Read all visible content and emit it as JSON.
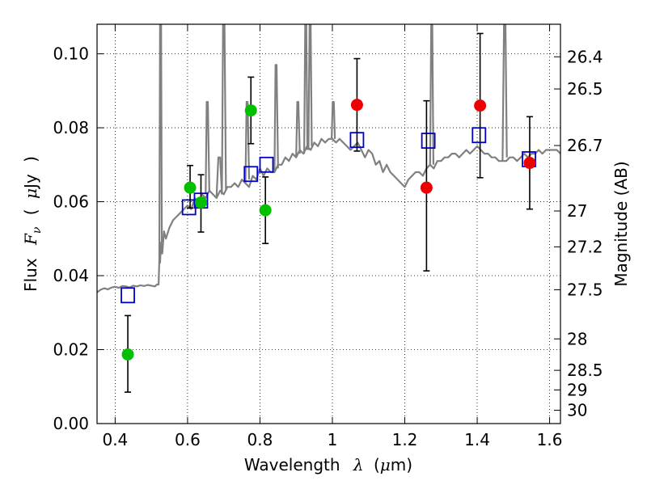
{
  "chart_data": {
    "type": "scatter",
    "xlabel": {
      "text": "Wavelength",
      "symbol": "λ",
      "open": "(",
      "unit_symbol": "μ",
      "unit": "m)"
    },
    "ylabel": {
      "text": "Flux",
      "symbol": "F",
      "subscript": "ν",
      "open": "(",
      "unit_symbol": "μ",
      "unit": "Jy",
      "close": ")"
    },
    "y2label": "Magnitude (AB)",
    "xlim": [
      0.35,
      1.63
    ],
    "ylim": [
      0.0,
      0.108
    ],
    "grid": true,
    "x_ticks": [
      {
        "value": 0.4,
        "label": "0.4"
      },
      {
        "value": 0.6,
        "label": "0.6"
      },
      {
        "value": 0.8,
        "label": "0.8"
      },
      {
        "value": 1.0,
        "label": "1"
      },
      {
        "value": 1.2,
        "label": "1.2"
      },
      {
        "value": 1.4,
        "label": "1.4"
      },
      {
        "value": 1.6,
        "label": "1.6"
      }
    ],
    "y_ticks": [
      {
        "value": 0.0,
        "label": "0.00"
      },
      {
        "value": 0.02,
        "label": "0.02"
      },
      {
        "value": 0.04,
        "label": "0.04"
      },
      {
        "value": 0.06,
        "label": "0.06"
      },
      {
        "value": 0.08,
        "label": "0.08"
      },
      {
        "value": 0.1,
        "label": "0.10"
      }
    ],
    "mag_ticks": [
      {
        "flux": 0.0992,
        "label": "26.4"
      },
      {
        "flux": 0.0905,
        "label": "26.5"
      },
      {
        "flux": 0.0752,
        "label": "26.7"
      },
      {
        "flux": 0.0575,
        "label": "27"
      },
      {
        "flux": 0.0478,
        "label": "27.2"
      },
      {
        "flux": 0.0362,
        "label": "27.5"
      },
      {
        "flux": 0.0229,
        "label": "28"
      },
      {
        "flux": 0.0144,
        "label": "28.5"
      },
      {
        "flux": 0.0091,
        "label": "29"
      },
      {
        "flux": 0.0036,
        "label": "30"
      }
    ],
    "series": [
      {
        "kind": "line",
        "color": "#808080",
        "x": [
          0.35,
          0.36,
          0.37,
          0.38,
          0.39,
          0.4,
          0.41,
          0.42,
          0.43,
          0.44,
          0.45,
          0.46,
          0.47,
          0.48,
          0.49,
          0.5,
          0.51,
          0.515,
          0.52,
          0.522,
          0.524,
          0.527,
          0.53,
          0.535,
          0.54,
          0.55,
          0.56,
          0.57,
          0.58,
          0.59,
          0.6,
          0.61,
          0.62,
          0.63,
          0.64,
          0.65,
          0.66,
          0.67,
          0.68,
          0.69,
          0.7,
          0.71,
          0.72,
          0.73,
          0.74,
          0.75,
          0.76,
          0.77,
          0.78,
          0.79,
          0.8,
          0.81,
          0.82,
          0.83,
          0.84,
          0.85,
          0.86,
          0.87,
          0.88,
          0.89,
          0.9,
          0.91,
          0.92,
          0.93,
          0.94,
          0.95,
          0.96,
          0.97,
          0.98,
          0.99,
          1.0,
          1.01,
          1.02,
          1.03,
          1.04,
          1.05,
          1.06,
          1.07,
          1.08,
          1.09,
          1.1,
          1.11,
          1.12,
          1.13,
          1.14,
          1.15,
          1.16,
          1.17,
          1.18,
          1.19,
          1.2,
          1.21,
          1.22,
          1.23,
          1.24,
          1.25,
          1.26,
          1.27,
          1.28,
          1.29,
          1.3,
          1.31,
          1.32,
          1.33,
          1.34,
          1.35,
          1.36,
          1.37,
          1.38,
          1.39,
          1.4,
          1.41,
          1.42,
          1.43,
          1.44,
          1.45,
          1.46,
          1.47,
          1.48,
          1.49,
          1.5,
          1.51,
          1.52,
          1.53,
          1.54,
          1.55,
          1.56,
          1.57,
          1.58,
          1.59,
          1.6,
          1.61,
          1.62,
          1.63
        ],
        "y": [
          0.0355,
          0.0362,
          0.0366,
          0.0363,
          0.0368,
          0.037,
          0.0367,
          0.0372,
          0.0371,
          0.0368,
          0.0373,
          0.0371,
          0.0374,
          0.0372,
          0.0375,
          0.0373,
          0.0371,
          0.0376,
          0.0376,
          0.044,
          0.0435,
          0.049,
          0.046,
          0.052,
          0.05,
          0.053,
          0.055,
          0.056,
          0.057,
          0.058,
          0.059,
          0.058,
          0.061,
          0.06,
          0.062,
          0.061,
          0.063,
          0.062,
          0.061,
          0.063,
          0.062,
          0.064,
          0.064,
          0.065,
          0.064,
          0.066,
          0.065,
          0.064,
          0.067,
          0.066,
          0.069,
          0.067,
          0.069,
          0.068,
          0.068,
          0.07,
          0.07,
          0.072,
          0.071,
          0.073,
          0.072,
          0.074,
          0.073,
          0.075,
          0.074,
          0.076,
          0.075,
          0.077,
          0.076,
          0.077,
          0.077,
          0.076,
          0.077,
          0.076,
          0.075,
          0.074,
          0.075,
          0.076,
          0.074,
          0.072,
          0.074,
          0.073,
          0.07,
          0.071,
          0.068,
          0.07,
          0.068,
          0.067,
          0.066,
          0.065,
          0.064,
          0.066,
          0.067,
          0.068,
          0.068,
          0.067,
          0.069,
          0.07,
          0.069,
          0.071,
          0.071,
          0.072,
          0.072,
          0.073,
          0.073,
          0.072,
          0.073,
          0.074,
          0.073,
          0.074,
          0.075,
          0.074,
          0.073,
          0.073,
          0.072,
          0.072,
          0.071,
          0.071,
          0.071,
          0.072,
          0.072,
          0.071,
          0.072,
          0.073,
          0.072,
          0.073,
          0.073,
          0.074,
          0.073,
          0.074,
          0.074,
          0.074,
          0.074,
          0.073
        ]
      },
      {
        "kind": "line",
        "color": "#808080",
        "x": [
          0.522,
          0.524,
          0.525,
          0.527,
          0.529
        ],
        "y": [
          0.044,
          0.108,
          0.108,
          0.108,
          0.049
        ]
      },
      {
        "kind": "line",
        "color": "#808080",
        "x": [
          0.65,
          0.653,
          0.656,
          0.66
        ],
        "y": [
          0.062,
          0.087,
          0.087,
          0.063
        ]
      },
      {
        "kind": "line",
        "color": "#808080",
        "x": [
          0.68,
          0.685,
          0.69,
          0.695
        ],
        "y": [
          0.061,
          0.072,
          0.072,
          0.062
        ]
      },
      {
        "kind": "line",
        "color": "#808080",
        "x": [
          0.695,
          0.698,
          0.702,
          0.706
        ],
        "y": [
          0.062,
          0.108,
          0.108,
          0.063
        ]
      },
      {
        "kind": "line",
        "color": "#808080",
        "x": [
          0.76,
          0.763,
          0.766,
          0.77
        ],
        "y": [
          0.065,
          0.087,
          0.087,
          0.066
        ]
      },
      {
        "kind": "line",
        "color": "#808080",
        "x": [
          0.84,
          0.843,
          0.846,
          0.85
        ],
        "y": [
          0.068,
          0.097,
          0.097,
          0.069
        ]
      },
      {
        "kind": "line",
        "color": "#808080",
        "x": [
          0.9,
          0.903,
          0.906,
          0.91
        ],
        "y": [
          0.072,
          0.087,
          0.087,
          0.073
        ]
      },
      {
        "kind": "line",
        "color": "#808080",
        "x": [
          0.922,
          0.925,
          0.928,
          0.931
        ],
        "y": [
          0.073,
          0.108,
          0.108,
          0.074
        ]
      },
      {
        "kind": "line",
        "color": "#808080",
        "x": [
          0.934,
          0.937,
          0.94,
          0.943
        ],
        "y": [
          0.074,
          0.108,
          0.108,
          0.075
        ]
      },
      {
        "kind": "line",
        "color": "#808080",
        "x": [
          0.998,
          1.001,
          1.004,
          1.007
        ],
        "y": [
          0.077,
          0.087,
          0.087,
          0.077
        ]
      },
      {
        "kind": "line",
        "color": "#808080",
        "x": [
          1.27,
          1.273,
          1.276,
          1.279
        ],
        "y": [
          0.07,
          0.108,
          0.108,
          0.07
        ]
      },
      {
        "kind": "line",
        "color": "#808080",
        "x": [
          1.47,
          1.474,
          1.478,
          1.482
        ],
        "y": [
          0.071,
          0.108,
          0.108,
          0.072
        ]
      },
      {
        "kind": "squares",
        "color": "#0000cc",
        "x": [
          0.435,
          0.604,
          0.637,
          0.775,
          0.818,
          1.068,
          1.265,
          1.405,
          1.543
        ],
        "y": [
          0.0347,
          0.0585,
          0.0603,
          0.0675,
          0.07,
          0.0767,
          0.0765,
          0.078,
          0.0715
        ]
      },
      {
        "kind": "points",
        "color": "#00c000",
        "x": [
          0.435,
          0.607,
          0.637,
          0.775,
          0.815
        ],
        "y": [
          0.0187,
          0.0638,
          0.0598,
          0.0847,
          0.0577
        ],
        "yerr_low": [
          0.0102,
          0.0055,
          0.008,
          0.009,
          0.009
        ],
        "yerr_high": [
          0.0105,
          0.006,
          0.0075,
          0.009,
          0.009
        ]
      },
      {
        "kind": "points",
        "color": "#ee0000",
        "x": [
          1.068,
          1.26,
          1.408,
          1.545
        ],
        "y": [
          0.0862,
          0.0638,
          0.086,
          0.0705
        ],
        "yerr_low": [
          0.0125,
          0.0225,
          0.0195,
          0.0125
        ],
        "yerr_high": [
          0.0125,
          0.0235,
          0.0195,
          0.0125
        ]
      }
    ]
  }
}
